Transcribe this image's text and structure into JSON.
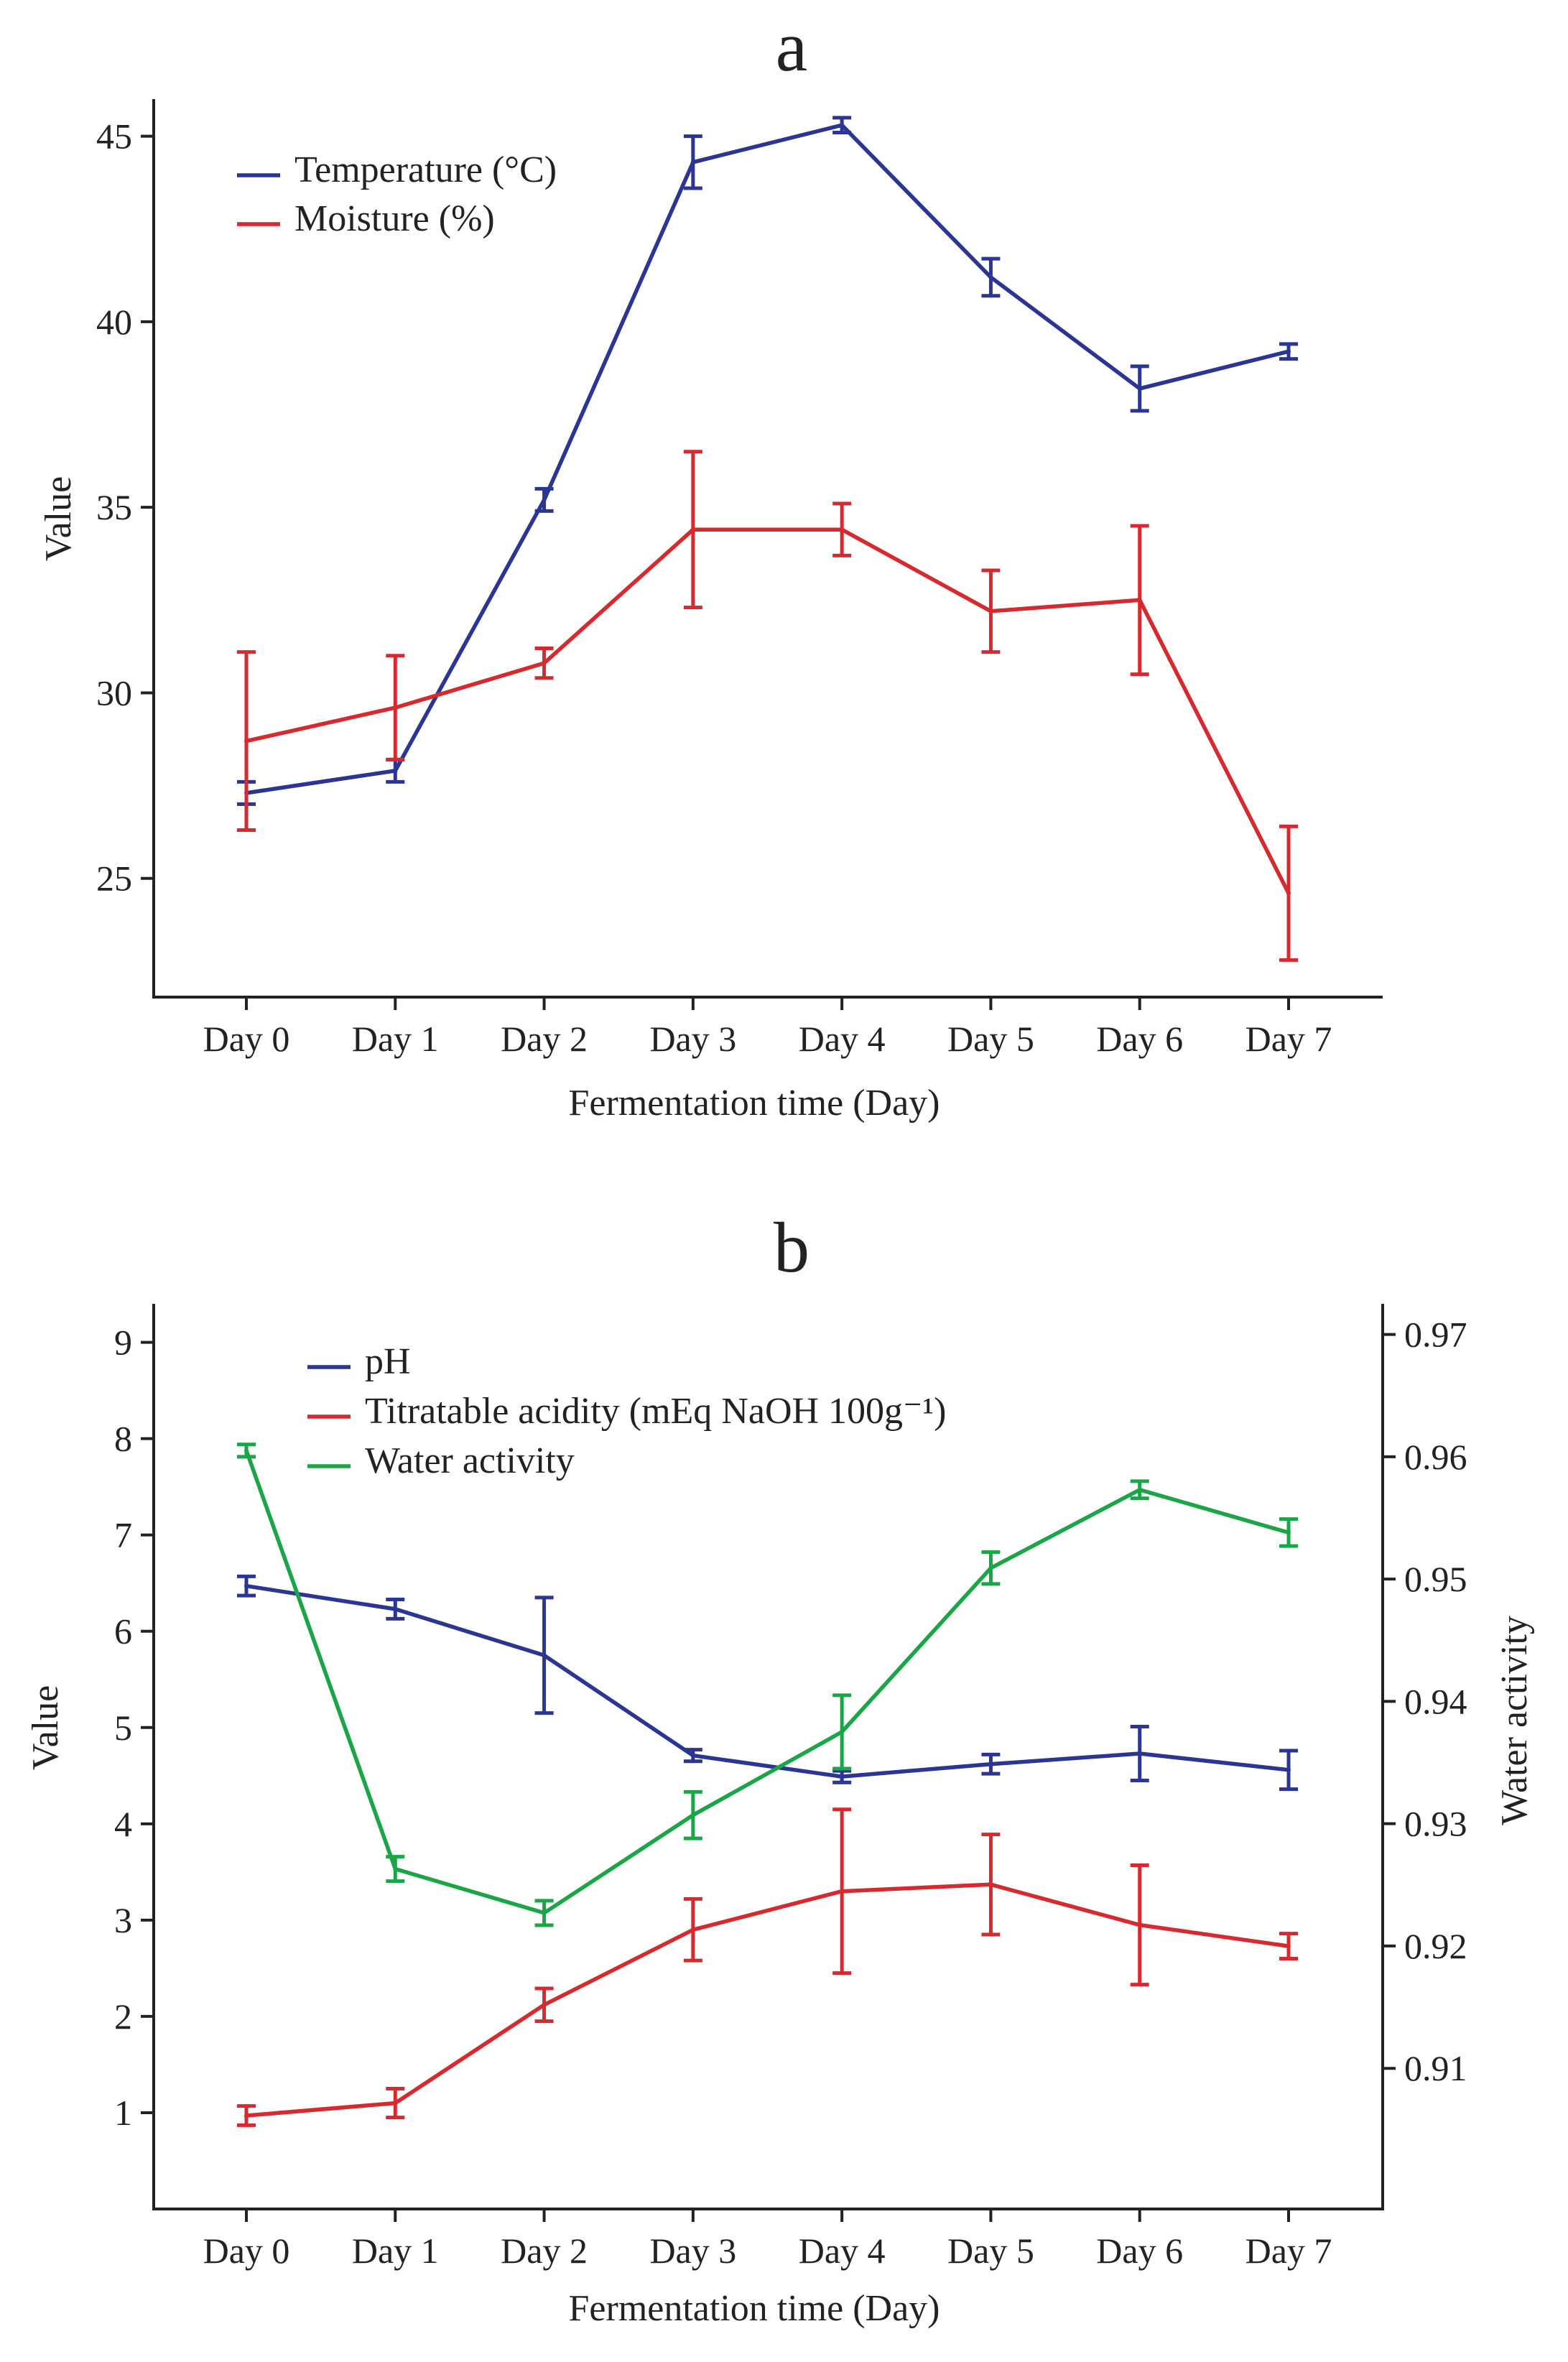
{
  "chart_data": [
    {
      "type": "line",
      "panel_label": "a",
      "title": "",
      "xlabel": "Fermentation time (Day)",
      "ylabel": "Value",
      "categories": [
        "Day 0",
        "Day 1",
        "Day 2",
        "Day 3",
        "Day 4",
        "Day 5",
        "Day 6",
        "Day 7"
      ],
      "ylim": [
        21.8,
        46.0
      ],
      "yticks": [
        25,
        30,
        35,
        40,
        45
      ],
      "ytick_labels": [
        "25",
        "30",
        "35",
        "40",
        "45"
      ],
      "legend_position": "top-left",
      "grid": false,
      "series": [
        {
          "name": "Temperature (°C)",
          "color": "#2b3593",
          "values": [
            27.3,
            27.9,
            35.2,
            44.3,
            45.3,
            41.2,
            38.2,
            39.2
          ],
          "errors": [
            0.3,
            0.3,
            0.3,
            0.7,
            0.2,
            0.5,
            0.6,
            0.2
          ]
        },
        {
          "name": "Moisture (%)",
          "color": "#d62a2e",
          "values": [
            28.7,
            29.6,
            30.8,
            34.4,
            34.4,
            32.2,
            32.5,
            24.6
          ],
          "errors": [
            2.4,
            1.4,
            0.4,
            2.1,
            0.7,
            1.1,
            2.0,
            1.8
          ]
        }
      ]
    },
    {
      "type": "line",
      "panel_label": "b",
      "title": "",
      "xlabel": "Fermentation time (Day)",
      "ylabel": "Value",
      "y2label": "Water activity",
      "categories": [
        "Day 0",
        "Day 1",
        "Day 2",
        "Day 3",
        "Day 4",
        "Day 5",
        "Day 6",
        "Day 7"
      ],
      "ylim": [
        0,
        9.4
      ],
      "yticks": [
        1,
        2,
        3,
        4,
        5,
        6,
        7,
        8,
        9
      ],
      "ytick_labels": [
        "1",
        "2",
        "3",
        "4",
        "5",
        "6",
        "7",
        "8",
        "9"
      ],
      "y2lim": [
        0.8985,
        0.9725
      ],
      "y2ticks": [
        0.91,
        0.92,
        0.93,
        0.94,
        0.95,
        0.96,
        0.97
      ],
      "y2tick_labels": [
        "0.91",
        "0.92",
        "0.93",
        "0.94",
        "0.95",
        "0.96",
        "0.97"
      ],
      "legend_position": "top-left",
      "grid": false,
      "series": [
        {
          "name": "pH",
          "color": "#2b3593",
          "axis": "left",
          "values": [
            6.47,
            6.23,
            5.75,
            4.71,
            4.49,
            4.62,
            4.73,
            4.56
          ],
          "errors": [
            0.1,
            0.1,
            0.6,
            0.06,
            0.06,
            0.1,
            0.28,
            0.2
          ]
        },
        {
          "name": "Titratable acidity (mEq NaOH 100g⁻¹)",
          "color": "#d62a2e",
          "axis": "left",
          "values": [
            0.97,
            1.1,
            2.12,
            2.9,
            3.3,
            3.37,
            2.95,
            2.73
          ],
          "errors": [
            0.1,
            0.15,
            0.17,
            0.32,
            0.85,
            0.52,
            0.62,
            0.13
          ]
        },
        {
          "name": "Water activity",
          "color": "#1aa647",
          "axis": "right",
          "values": [
            0.9605,
            0.9263,
            0.9227,
            0.9307,
            0.9375,
            0.9509,
            0.9573,
            0.9538
          ],
          "errors": [
            0.0005,
            0.001,
            0.001,
            0.0019,
            0.003,
            0.0013,
            0.0007,
            0.0011
          ]
        }
      ]
    }
  ]
}
